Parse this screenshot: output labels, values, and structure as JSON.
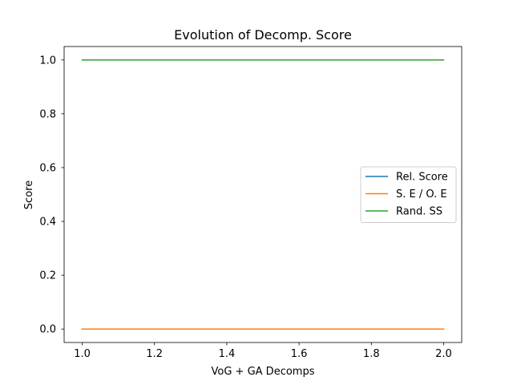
{
  "chart_data": {
    "type": "line",
    "title": "Evolution of Decomp. Score",
    "xlabel": "VoG + GA Decomps",
    "ylabel": "Score",
    "xlim": [
      0.95,
      2.05
    ],
    "ylim": [
      -0.05,
      1.05
    ],
    "xticks": [
      1.0,
      1.2,
      1.4,
      1.6,
      1.8,
      2.0
    ],
    "xtick_labels": [
      "1.0",
      "1.2",
      "1.4",
      "1.6",
      "1.8",
      "2.0"
    ],
    "yticks": [
      0.0,
      0.2,
      0.4,
      0.6,
      0.8,
      1.0
    ],
    "ytick_labels": [
      "0.0",
      "0.2",
      "0.4",
      "0.6",
      "0.8",
      "1.0"
    ],
    "grid": false,
    "legend_position": "center-right",
    "series": [
      {
        "name": "Rel. Score",
        "color": "#1f77b4",
        "x": [
          1.0,
          2.0
        ],
        "y": [
          0.0,
          0.0
        ]
      },
      {
        "name": "S. E / O. E",
        "color": "#ff7f0e",
        "x": [
          1.0,
          2.0
        ],
        "y": [
          0.0,
          0.0
        ]
      },
      {
        "name": "Rand. SS",
        "color": "#2ca02c",
        "x": [
          1.0,
          2.0
        ],
        "y": [
          1.0,
          1.0
        ]
      }
    ]
  }
}
